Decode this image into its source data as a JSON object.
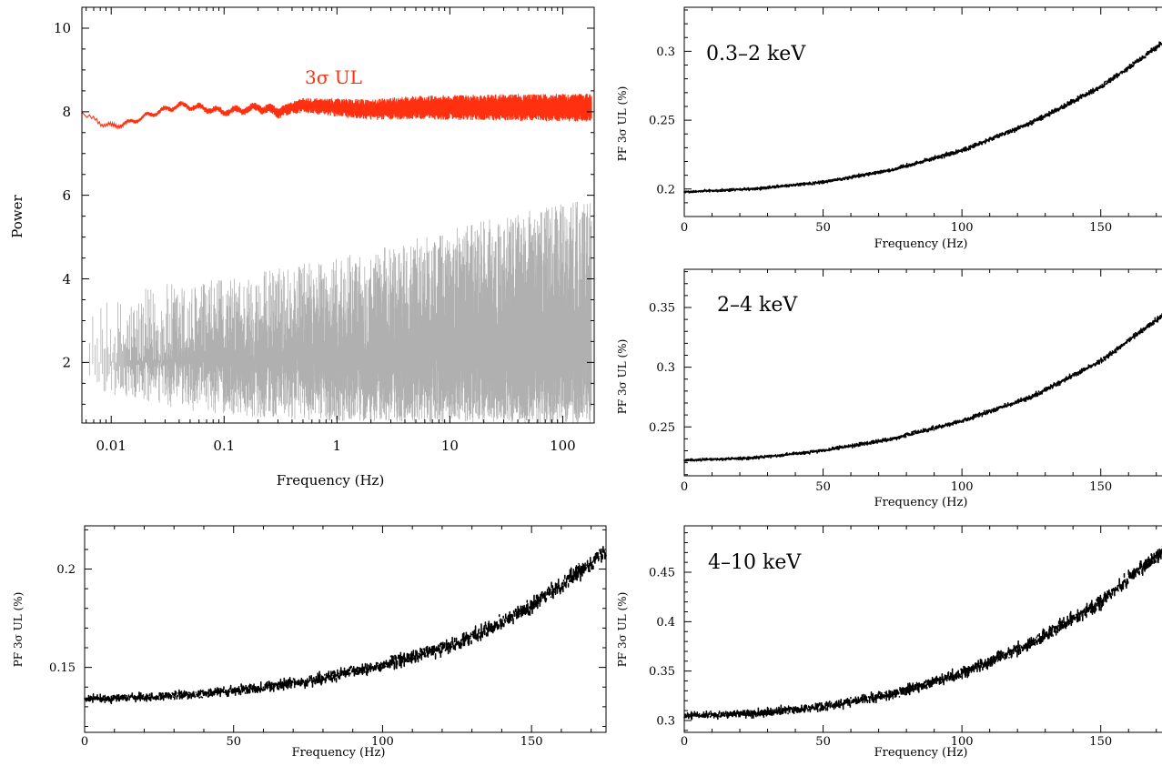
{
  "chart_data": [
    {
      "id": "power_spectrum",
      "type": "line",
      "title": "",
      "xlabel": "Frequency (Hz)",
      "ylabel": "Power",
      "x_scale": "log",
      "xlim": [
        0.0055,
        190
      ],
      "ylim": [
        0.55,
        10.5
      ],
      "x_ticks": [
        0.01,
        0.1,
        1,
        10,
        100
      ],
      "x_tick_labels": [
        "0.01",
        "0.1",
        "1",
        "10",
        "100"
      ],
      "y_ticks": [
        2,
        4,
        6,
        8,
        10
      ],
      "y_tick_labels": [
        "2",
        "4",
        "6",
        "8",
        "10"
      ],
      "grid": false,
      "annotation": "3σ UL",
      "series": [
        {
          "name": "",
          "role": "noise-power-spectrum",
          "color": "#b0b0b0",
          "x": [
            0.006,
            0.01,
            0.03,
            0.1,
            0.3,
            1,
            3,
            10,
            30,
            100,
            180
          ],
          "y_median": [
            2.0,
            2.0,
            2.0,
            2.05,
            2.1,
            2.15,
            2.2,
            2.3,
            2.35,
            2.4,
            2.4
          ],
          "y_upper": [
            3.2,
            3.5,
            3.9,
            4.0,
            4.3,
            4.5,
            4.8,
            5.2,
            5.5,
            5.8,
            5.9
          ],
          "y_lower": [
            1.5,
            1.2,
            0.9,
            0.75,
            0.65,
            0.6,
            0.55,
            0.55,
            0.55,
            0.55,
            0.55
          ]
        },
        {
          "name": "3σ UL",
          "role": "upper-limit",
          "color": "#ff3010",
          "x": [
            0.0055,
            0.007,
            0.01,
            0.015,
            0.02,
            0.03,
            0.04,
            0.06,
            0.1,
            0.15,
            0.2,
            0.3,
            0.5,
            1,
            2,
            5,
            10,
            30,
            100,
            180
          ],
          "y": [
            8.0,
            7.8,
            7.65,
            7.75,
            7.9,
            8.05,
            8.15,
            8.1,
            8.0,
            8.05,
            8.1,
            8.0,
            8.15,
            8.1,
            8.05,
            8.1,
            8.1,
            8.1,
            8.1,
            8.1
          ],
          "y_spread": [
            0.05,
            0.05,
            0.05,
            0.05,
            0.05,
            0.06,
            0.06,
            0.07,
            0.08,
            0.09,
            0.1,
            0.12,
            0.18,
            0.22,
            0.25,
            0.28,
            0.3,
            0.32,
            0.33,
            0.33
          ]
        }
      ]
    },
    {
      "id": "pf_total",
      "type": "scatter",
      "title": "",
      "xlabel": "Frequency (Hz)",
      "ylabel": "PF 3σ UL (%)",
      "xlim": [
        0,
        175
      ],
      "ylim": [
        0.117,
        0.222
      ],
      "x_ticks": [
        0,
        50,
        100,
        150
      ],
      "x_tick_labels": [
        "0",
        "50",
        "100",
        "150"
      ],
      "y_ticks": [
        0.15,
        0.2
      ],
      "y_tick_labels": [
        "0.15",
        "0.2"
      ],
      "grid": false,
      "series": [
        {
          "name": "",
          "color": "#000000",
          "x": [
            0,
            25,
            50,
            75,
            100,
            125,
            150,
            175
          ],
          "y": [
            0.134,
            0.135,
            0.138,
            0.143,
            0.151,
            0.162,
            0.181,
            0.209
          ],
          "scatter_width": 0.0022
        }
      ]
    },
    {
      "id": "pf_soft",
      "type": "line",
      "title": "",
      "xlabel": "Frequency (Hz)",
      "ylabel": "PF 3σ UL (%)",
      "xlim": [
        0,
        175
      ],
      "ylim": [
        0.18,
        0.332
      ],
      "x_ticks": [
        0,
        50,
        100,
        150
      ],
      "x_tick_labels": [
        "0",
        "50",
        "100",
        "150"
      ],
      "y_ticks": [
        0.2,
        0.25,
        0.3
      ],
      "y_tick_labels": [
        "0.2",
        "0.25",
        "0.3"
      ],
      "grid": false,
      "annotation": "0.3–2 keV",
      "series": [
        {
          "name": "",
          "color": "#000000",
          "x": [
            0,
            25,
            50,
            75,
            100,
            125,
            150,
            175
          ],
          "y": [
            0.198,
            0.2,
            0.205,
            0.214,
            0.228,
            0.248,
            0.274,
            0.31
          ],
          "scatter_width": 0.001
        }
      ]
    },
    {
      "id": "pf_medium",
      "type": "line",
      "title": "",
      "xlabel": "Frequency (Hz)",
      "ylabel": "PF 3σ UL (%)",
      "xlim": [
        0,
        175
      ],
      "ylim": [
        0.209,
        0.382
      ],
      "x_ticks": [
        0,
        50,
        100,
        150
      ],
      "x_tick_labels": [
        "0",
        "50",
        "100",
        "150"
      ],
      "y_ticks": [
        0.25,
        0.3,
        0.35
      ],
      "y_tick_labels": [
        "0.25",
        "0.3",
        "0.35"
      ],
      "grid": false,
      "annotation": "2–4 keV",
      "series": [
        {
          "name": "",
          "color": "#000000",
          "x": [
            0,
            25,
            50,
            75,
            100,
            125,
            150,
            175
          ],
          "y": [
            0.222,
            0.224,
            0.23,
            0.24,
            0.255,
            0.275,
            0.305,
            0.348
          ],
          "scatter_width": 0.0012
        }
      ]
    },
    {
      "id": "pf_hard",
      "type": "scatter",
      "title": "",
      "xlabel": "Frequency (Hz)",
      "ylabel": "PF 3σ UL (%)",
      "xlim": [
        0,
        175
      ],
      "ylim": [
        0.288,
        0.497
      ],
      "x_ticks": [
        0,
        50,
        100,
        150
      ],
      "x_tick_labels": [
        "0",
        "50",
        "100",
        "150"
      ],
      "y_ticks": [
        0.3,
        0.35,
        0.4,
        0.45
      ],
      "y_tick_labels": [
        "0.3",
        "0.35",
        "0.4",
        "0.45"
      ],
      "grid": false,
      "annotation": "4–10 keV",
      "series": [
        {
          "name": "",
          "color": "#000000",
          "x": [
            0,
            25,
            50,
            75,
            100,
            125,
            150,
            175
          ],
          "y": [
            0.305,
            0.307,
            0.314,
            0.327,
            0.348,
            0.378,
            0.42,
            0.478
          ],
          "scatter_width": 0.004
        }
      ]
    }
  ]
}
